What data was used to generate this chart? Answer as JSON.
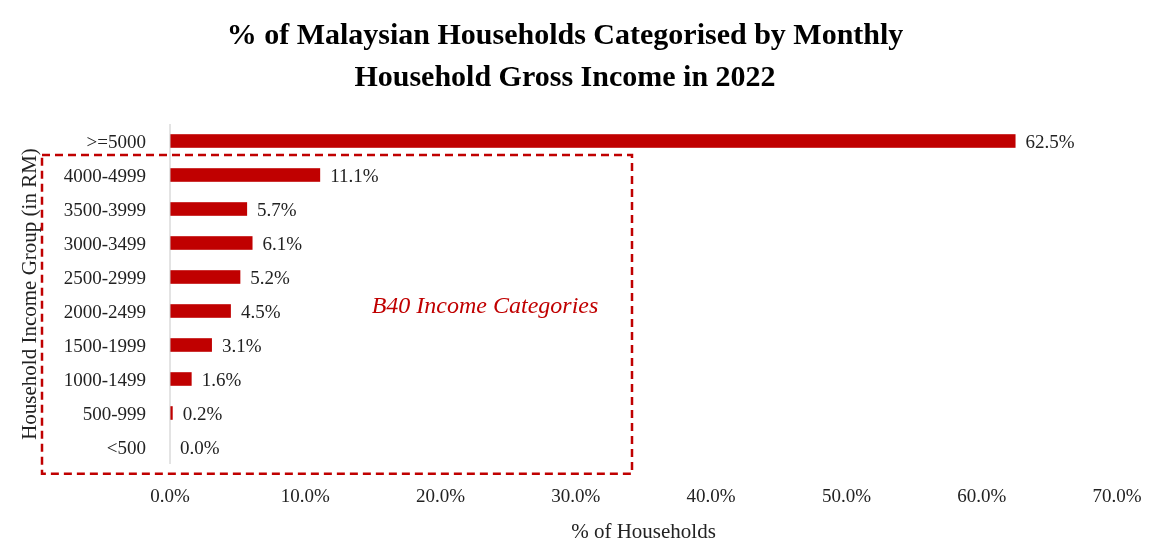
{
  "chart_data": {
    "type": "bar",
    "orientation": "horizontal",
    "title": "% of Malaysian Households Categorised by Monthly Household Gross Income in 2022",
    "xlabel": "% of Households",
    "ylabel": "Household Income Group (in RM)",
    "categories": [
      ">=5000",
      "4000-4999",
      "3500-3999",
      "3000-3499",
      "2500-2999",
      "2000-2499",
      "1500-1999",
      "1000-1499",
      "500-999",
      "<500"
    ],
    "values": [
      62.5,
      11.1,
      5.7,
      6.1,
      5.2,
      4.5,
      3.1,
      1.6,
      0.2,
      0.0
    ],
    "value_labels": [
      "62.5%",
      "11.1%",
      "5.7%",
      "6.1%",
      "5.2%",
      "4.5%",
      "3.1%",
      "1.6%",
      "0.2%",
      "0.0%"
    ],
    "color": "#c00000",
    "xlim": [
      0,
      70
    ],
    "xticks": [
      {
        "value": 0,
        "label": "0.0%"
      },
      {
        "value": 10,
        "label": "10.0%"
      },
      {
        "value": 20,
        "label": "20.0%"
      },
      {
        "value": 30,
        "label": "30.0%"
      },
      {
        "value": 40,
        "label": "40.0%"
      },
      {
        "value": 50,
        "label": "50.0%"
      },
      {
        "value": 60,
        "label": "60.0%"
      },
      {
        "value": 70,
        "label": "70.0%"
      }
    ],
    "grid": false,
    "annotations": [
      "B40 Income Categories"
    ]
  }
}
